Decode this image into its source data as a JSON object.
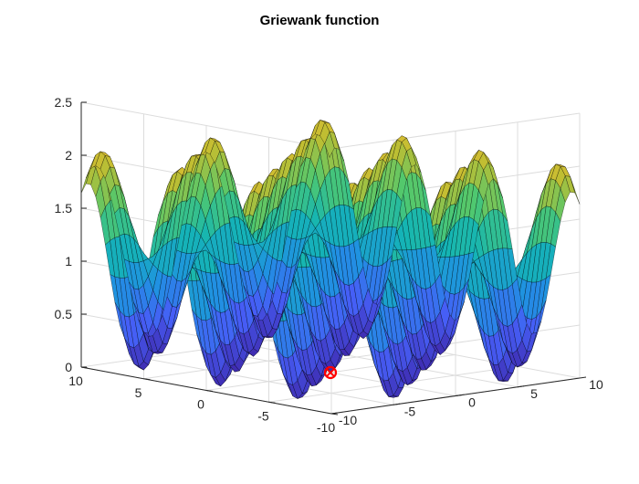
{
  "chart_data": {
    "type": "surface",
    "title": "Griewank function",
    "function": "z = 1 + (x^2 + y^2)/4000 - cos(x)*cos(y/sqrt(2))",
    "x_range": [
      -10,
      10
    ],
    "y_range": [
      -10,
      10
    ],
    "x_ticks": [
      "-10",
      "-5",
      "0",
      "5",
      "10"
    ],
    "y_ticks": [
      "-10",
      "-5",
      "0",
      "5",
      "10"
    ],
    "z_ticks": [
      "0",
      "0.5",
      "1",
      "1.5",
      "2",
      "2.5"
    ],
    "zlim": [
      0,
      2.5
    ],
    "grid": true,
    "colormap": "parula",
    "minimum_marker": {
      "x": 0,
      "y": 0,
      "z": 0,
      "color": "#ff0000",
      "shape": "circle-x"
    }
  },
  "colors": {
    "background": "#ffffff",
    "grid": "#dcdcdc",
    "axis": "#262626",
    "mesh": "#000000"
  }
}
